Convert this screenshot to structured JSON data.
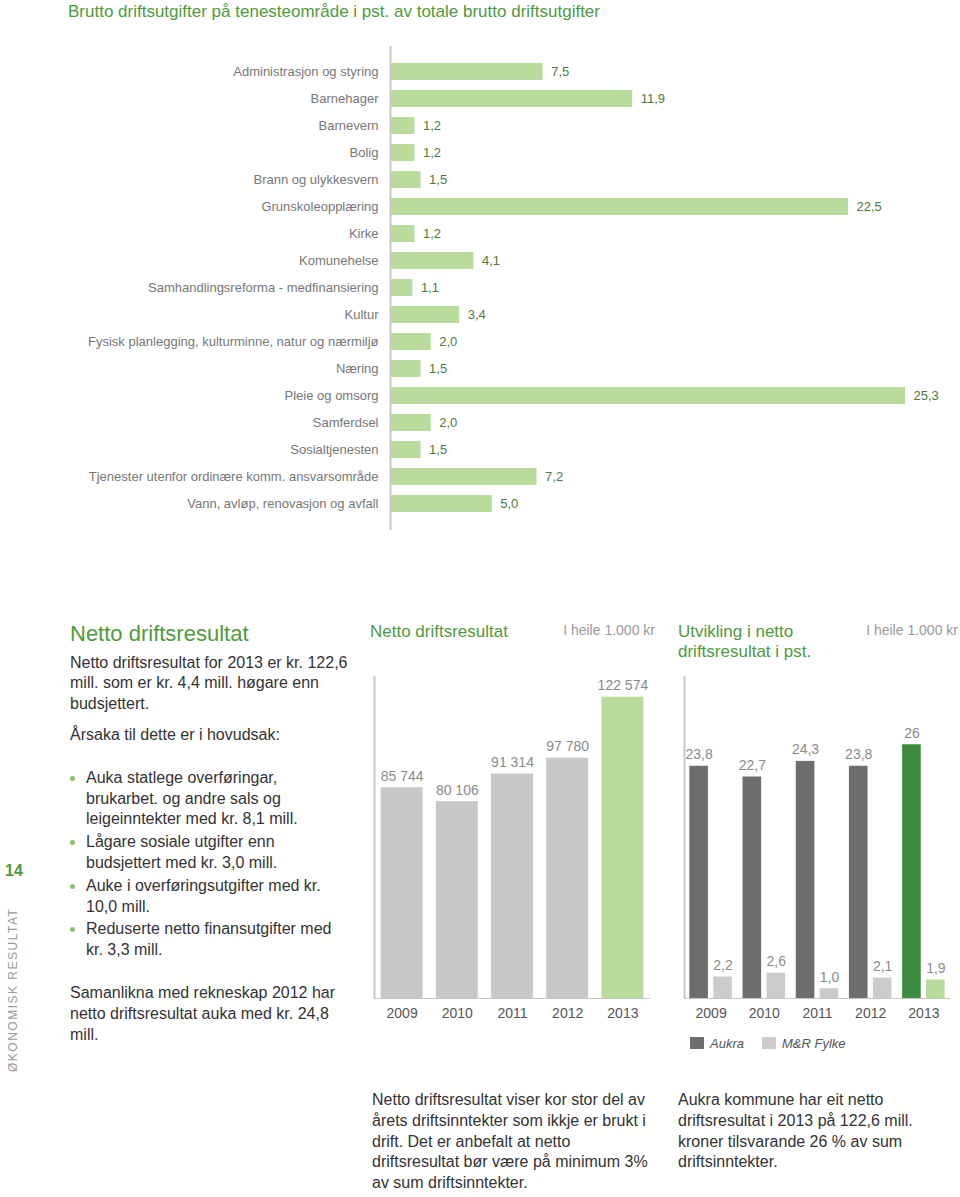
{
  "page": {
    "number": "14",
    "section": "ØKONOMISK RESULTAT",
    "text": {
      "heading": "Netto driftsresultat",
      "intro": "Netto driftsresultat for 2013 er kr. 122,6 mill. som er kr. 4,4 mill. høgare enn budsjettert.",
      "lead": "Årsaka til dette er i hovudsak:",
      "bullets": [
        "Auka statlege overføringar, brukarbet. og andre sals og leigeinntekter med kr. 8,1 mill.",
        "Lågare sosiale utgifter enn budsjettert med kr. 3,0 mill.",
        "Auke i overføringsutgifter med kr. 10,0 mill.",
        "Reduserte netto finansutgifter med kr. 3,3 mill."
      ],
      "closing": "Samanlikna med rekneskap 2012 har netto driftsresultat auka med kr. 24,8 mill."
    }
  },
  "chart_data": [
    {
      "type": "bar",
      "orientation": "horizontal",
      "title": "Brutto driftsutgifter på tenesteområde i pst. av totale brutto driftsutgifter",
      "categories": [
        "Administrasjon og styring",
        "Barnehager",
        "Barnevern",
        "Bolig",
        "Brann og ulykkesvern",
        "Grunskoleopplæring",
        "Kirke",
        "Komunehelse",
        "Samhandlingsreforma - medfinansiering",
        "Kultur",
        "Fysisk planlegging, kulturminne, natur og nærmiljø",
        "Næring",
        "Pleie og omsorg",
        "Samferdsel",
        "Sosialtjenesten",
        "Tjenester utenfor ordinære komm. ansvarsområde",
        "Vann, avløp, renovasjon og avfall"
      ],
      "values": [
        7.5,
        11.9,
        1.2,
        1.2,
        1.5,
        22.5,
        1.2,
        4.1,
        1.1,
        3.4,
        2.0,
        1.5,
        25.3,
        2.0,
        1.5,
        7.2,
        5.0
      ],
      "value_labels": [
        "7,5",
        "11,9",
        "1,2",
        "1,2",
        "1,5",
        "22,5",
        "1,2",
        "4,1",
        "1,1",
        "3,4",
        "2,0",
        "1,5",
        "25,3",
        "2,0",
        "1,5",
        "7,2",
        "5,0"
      ],
      "color": "#b9dc9d",
      "xlim": [
        0,
        25.3
      ],
      "data_labels": true,
      "tick_labels": "y"
    },
    {
      "type": "bar",
      "title": "Netto driftsresultat",
      "subtitle": "I heile 1.000 kr",
      "categories": [
        "2009",
        "2010",
        "2011",
        "2012",
        "2013"
      ],
      "values": [
        85744,
        80106,
        91314,
        97780,
        122574
      ],
      "value_labels": [
        "85 744",
        "80 106",
        "91 314",
        "97 780",
        "122 574"
      ],
      "colors": [
        "#c8c8c8",
        "#c8c8c8",
        "#c8c8c8",
        "#c8c8c8",
        "#b9dc9d"
      ],
      "ylim": [
        0,
        131000
      ],
      "data_labels": true,
      "tick_labels": "x",
      "caption": "Netto driftsresultat viser kor stor del av årets driftsinntekter som ikkje er brukt i drift. Det er anbefalt at netto driftsresultat bør være på minimum 3% av sum driftsinntekter."
    },
    {
      "type": "bar",
      "title": "Utvikling i netto driftsresultat i pst.",
      "subtitle": "I heile 1.000 kr",
      "categories": [
        "2009",
        "2010",
        "2011",
        "2012",
        "2013"
      ],
      "series": [
        {
          "name": "Aukra",
          "color": "#6e6e6e",
          "colors": [
            "#6e6e6e",
            "#6e6e6e",
            "#6e6e6e",
            "#6e6e6e",
            "#3c8c3f"
          ],
          "values": [
            23.8,
            22.7,
            24.3,
            23.8,
            26
          ],
          "value_labels": [
            "23,8",
            "22,7",
            "24,3",
            "23,8",
            "26"
          ]
        },
        {
          "name": "M&R Fylke",
          "color": "#cbcbcb",
          "colors": [
            "#cbcbcb",
            "#cbcbcb",
            "#cbcbcb",
            "#cbcbcb",
            "#b9dc9d"
          ],
          "values": [
            2.2,
            2.6,
            1.0,
            2.1,
            1.9
          ],
          "value_labels": [
            "2,2",
            "2,6",
            "1,0",
            "2,1",
            "1,9"
          ]
        }
      ],
      "ylim": [
        0,
        33
      ],
      "data_labels": true,
      "tick_labels": "x",
      "legend": "bottom",
      "caption": "Aukra kommune har eit netto driftsresultat i 2013 på 122,6 mill. kroner tilsvarande 26 % av sum driftsinntekter."
    }
  ]
}
